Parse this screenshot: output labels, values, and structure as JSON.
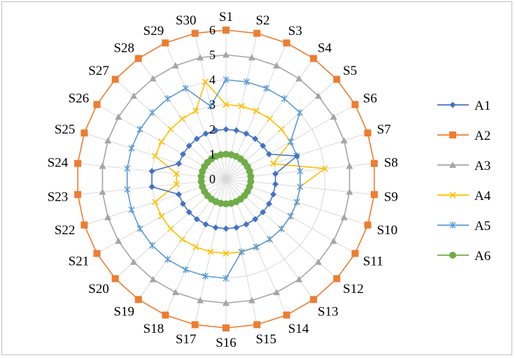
{
  "chart_data": {
    "type": "radar",
    "categories": [
      "S1",
      "S2",
      "S3",
      "S4",
      "S5",
      "S6",
      "S7",
      "S8",
      "S9",
      "S10",
      "S11",
      "S12",
      "S13",
      "S14",
      "S15",
      "S16",
      "S17",
      "S18",
      "S19",
      "S20",
      "S21",
      "S22",
      "S23",
      "S24",
      "S25",
      "S26",
      "S27",
      "S28",
      "S29",
      "S30"
    ],
    "series": [
      {
        "name": "A1",
        "color": "#4472C4",
        "marker": "diamond",
        "values": [
          2,
          2,
          2,
          2,
          2,
          2,
          3,
          2,
          2,
          2,
          2,
          2,
          2,
          2,
          2,
          2,
          2,
          2,
          2,
          2,
          2,
          2,
          3,
          3,
          2,
          2,
          2,
          2,
          2,
          2
        ]
      },
      {
        "name": "A2",
        "color": "#ED7D31",
        "marker": "square",
        "values": [
          6,
          6,
          6,
          6,
          6,
          6,
          6,
          6,
          6,
          6,
          6,
          6,
          6,
          6,
          6,
          6,
          6,
          6,
          6,
          6,
          6,
          6,
          6,
          6,
          6,
          6,
          6,
          6,
          6,
          6
        ]
      },
      {
        "name": "A3",
        "color": "#A5A5A5",
        "marker": "triangle",
        "values": [
          5,
          5,
          5,
          5,
          5,
          5,
          5,
          5,
          5,
          5,
          5,
          5,
          5,
          5,
          5,
          5,
          5,
          5,
          5,
          5,
          5,
          5,
          5,
          5,
          5,
          5,
          5,
          5,
          5,
          5
        ]
      },
      {
        "name": "A4",
        "color": "#FFC000",
        "marker": "x",
        "values": [
          3,
          3,
          3,
          3,
          3,
          3,
          2,
          4,
          3,
          3,
          3,
          3,
          3,
          3,
          3,
          3,
          3,
          3,
          3,
          3,
          3,
          3,
          2,
          2,
          3,
          3,
          3,
          3,
          3,
          4
        ]
      },
      {
        "name": "A5",
        "color": "#5B9BD5",
        "marker": "star",
        "values": [
          4,
          4,
          4,
          4,
          4,
          3,
          3,
          3,
          3,
          3,
          3,
          3,
          3,
          3,
          3,
          4,
          4,
          4,
          4,
          4,
          4,
          4,
          4,
          4,
          4,
          4,
          4,
          4,
          4,
          3
        ]
      },
      {
        "name": "A6",
        "color": "#70AD47",
        "marker": "circle",
        "values": [
          1,
          1,
          1,
          1,
          1,
          1,
          1,
          1,
          1,
          1,
          1,
          1,
          1,
          1,
          1,
          1,
          1,
          1,
          1,
          1,
          1,
          1,
          1,
          1,
          1,
          1,
          1,
          1,
          1,
          1
        ]
      }
    ],
    "rlim": [
      0,
      6
    ],
    "ticks": [
      "0",
      "1",
      "2",
      "3",
      "4",
      "5",
      "6"
    ],
    "grid": true,
    "legend": "right"
  }
}
